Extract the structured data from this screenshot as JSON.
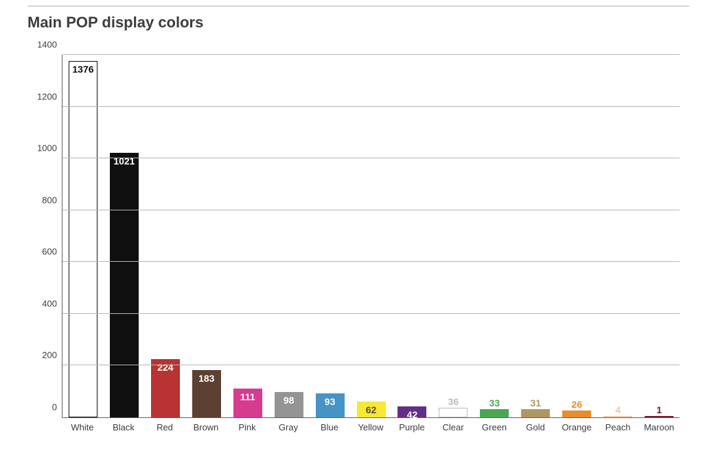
{
  "chart": {
    "type": "bar",
    "title": "Main POP display colors",
    "title_fontsize": 22,
    "title_color": "#3d3d3d",
    "background_color": "#ffffff",
    "top_rule_color": "#d6d6d6",
    "axis_color": "#606060",
    "grid_color": "#b5b5b5",
    "label_fontsize": 13,
    "label_color": "#3d3d3d",
    "value_fontsize": 14,
    "ylim": [
      0,
      1400
    ],
    "ytick_step": 200,
    "yticks": [
      0,
      200,
      400,
      600,
      800,
      1000,
      1200,
      1400
    ],
    "bar_width": 0.7,
    "categories": [
      "White",
      "Black",
      "Red",
      "Brown",
      "Pink",
      "Gray",
      "Blue",
      "Yellow",
      "Purple",
      "Clear",
      "Green",
      "Gold",
      "Orange",
      "Peach",
      "Maroon"
    ],
    "values": [
      1376,
      1021,
      224,
      183,
      111,
      98,
      93,
      62,
      42,
      36,
      33,
      31,
      26,
      4,
      1
    ],
    "bar_colors": [
      "#ffffff",
      "#0f0f0f",
      "#b83331",
      "#5d4034",
      "#d63b8f",
      "#949494",
      "#4693c5",
      "#f7e833",
      "#622e8a",
      "#ffffff",
      "#49a850",
      "#b09863",
      "#e98c2d",
      "#f3c6ab",
      "#6e1a27"
    ],
    "bar_border_colors": [
      "#0f0f0f",
      "#0f0f0f",
      "#b83331",
      "#5d4034",
      "#d63b8f",
      "#949494",
      "#4693c5",
      "#f7e833",
      "#622e8a",
      "#bcbcbc",
      "#49a850",
      "#b09863",
      "#e98c2d",
      "#f3c6ab",
      "#6e1a27"
    ],
    "value_label_inside": [
      true,
      true,
      true,
      true,
      true,
      true,
      true,
      true,
      true,
      false,
      false,
      false,
      false,
      false,
      false
    ],
    "value_label_color": [
      "#0f0f0f",
      "#ffffff",
      "#ffffff",
      "#ffffff",
      "#ffffff",
      "#ffffff",
      "#ffffff",
      "#4d4d4d",
      "#ffffff",
      "#bcbcbc",
      "#49a850",
      "#b09863",
      "#e98c2d",
      "#f3c6ab",
      "#6e1a27"
    ]
  }
}
